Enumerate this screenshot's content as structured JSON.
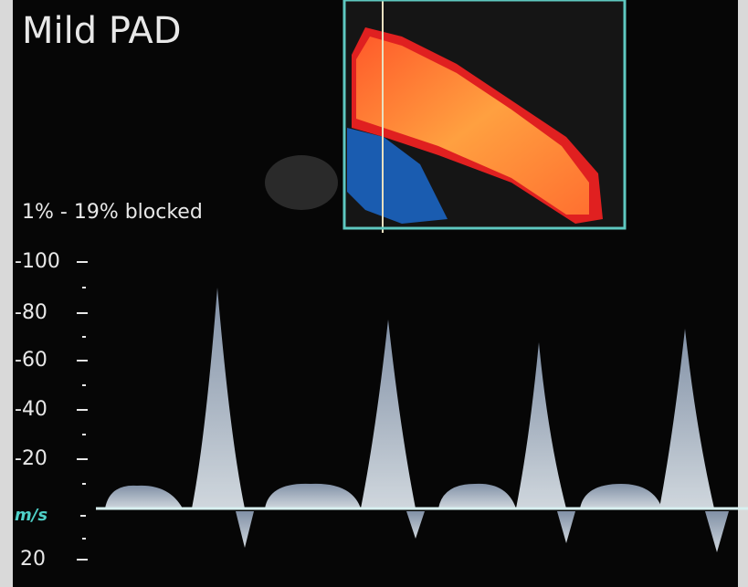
{
  "title": "Mild PAD",
  "caption": "1% - 19% blocked",
  "scale": {
    "labels": [
      "-100",
      "-80",
      "-60",
      "-40",
      "-20",
      "m/s",
      "20"
    ]
  }
}
